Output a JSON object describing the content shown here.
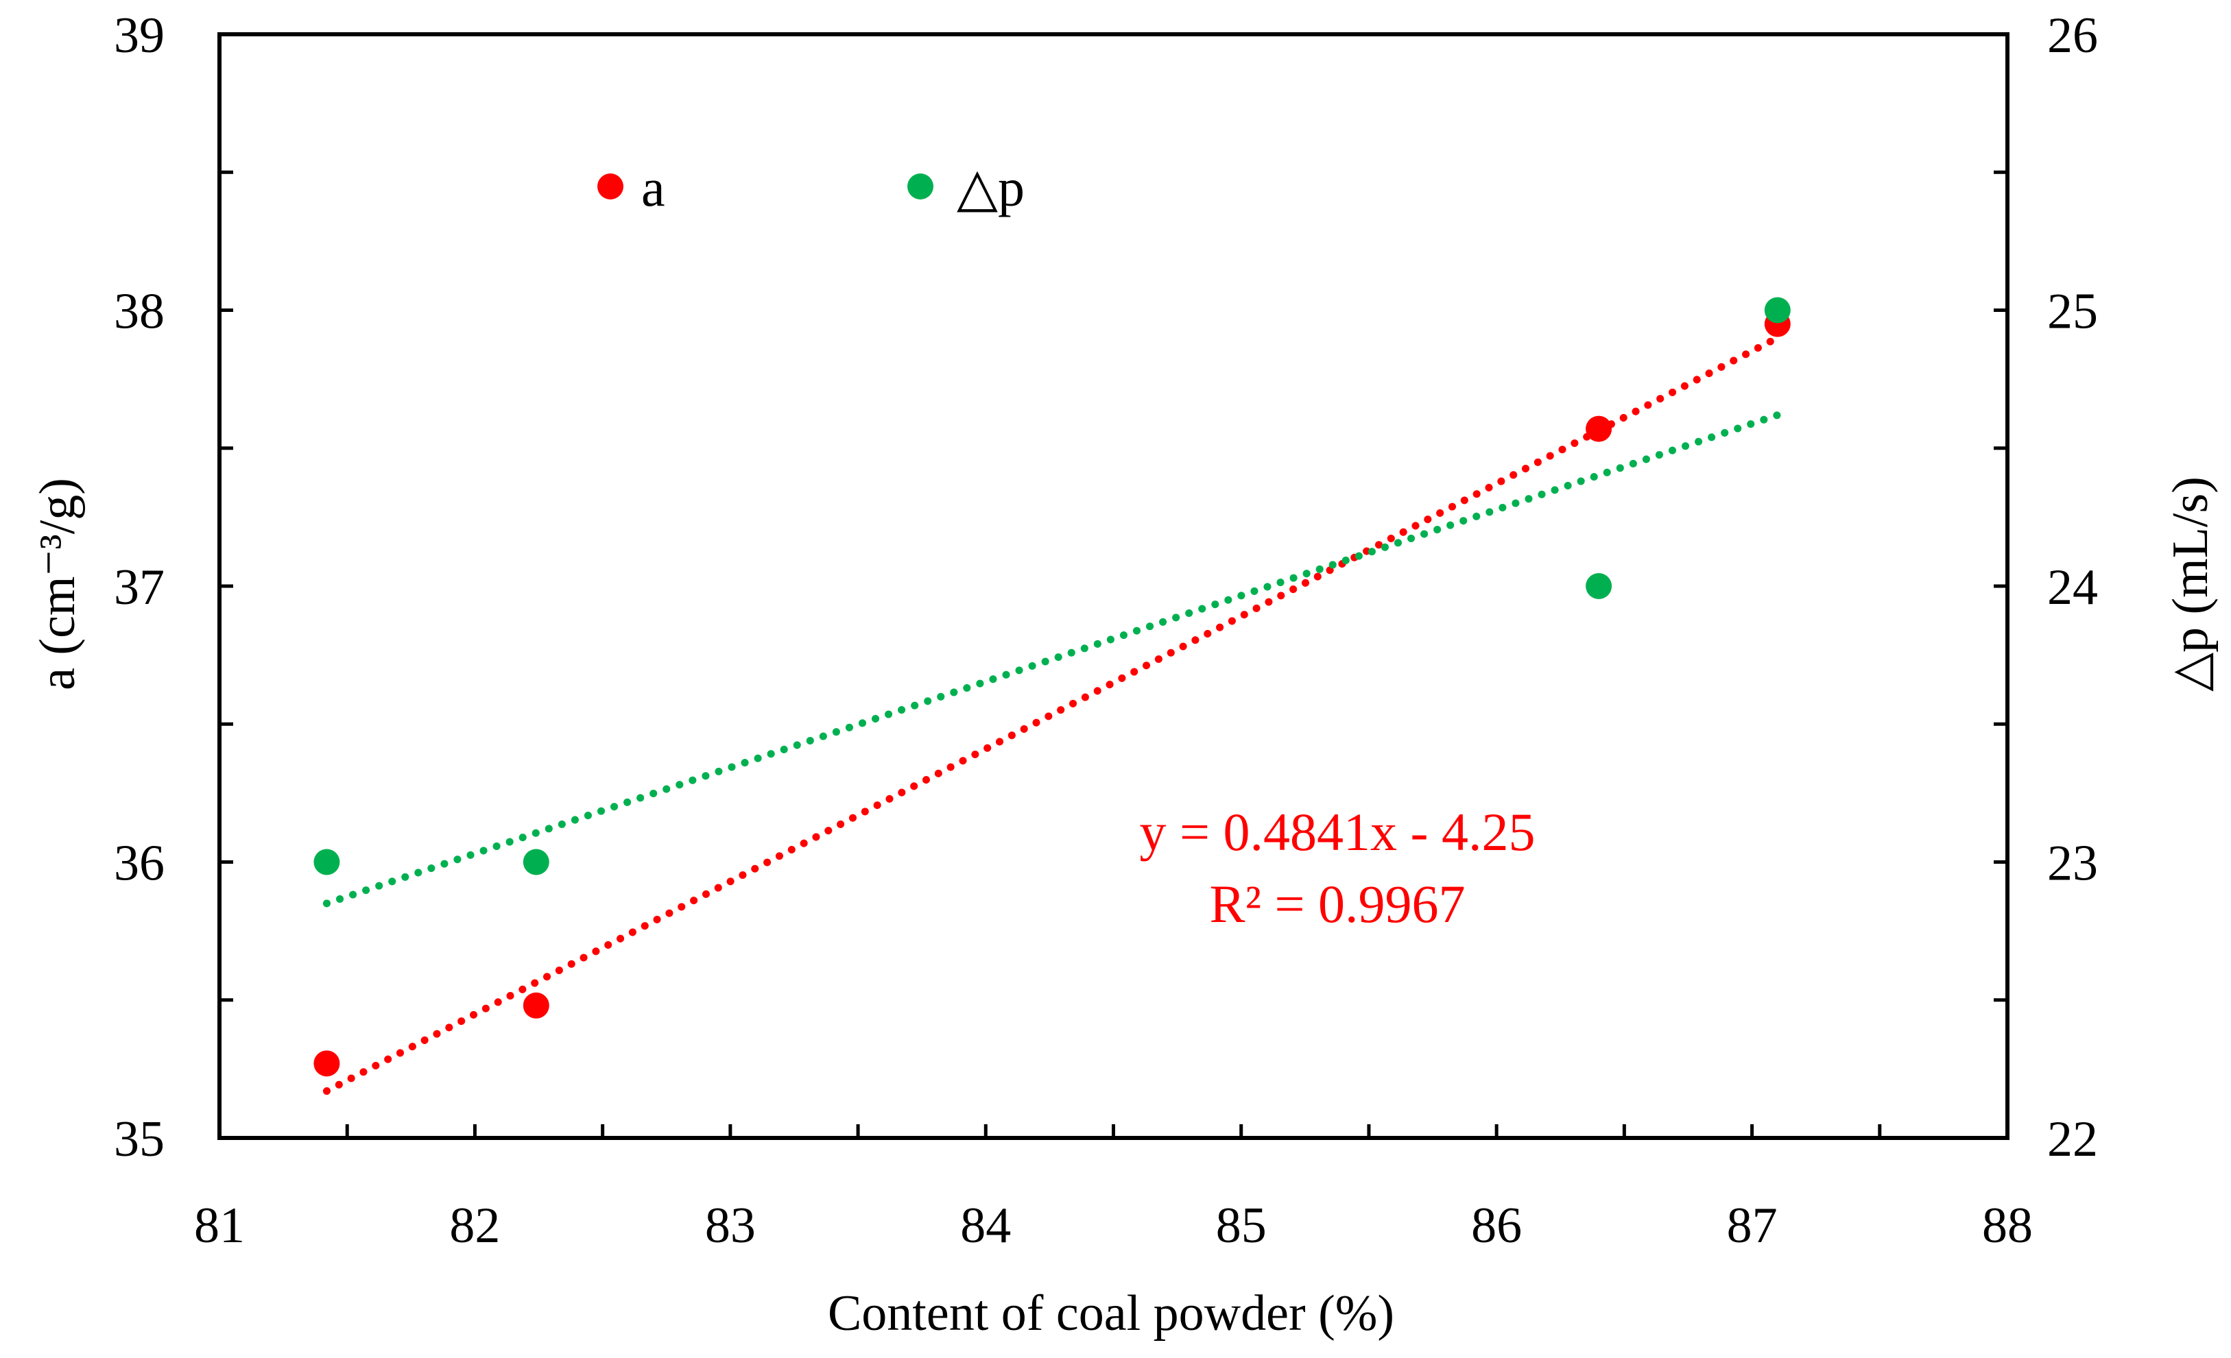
{
  "colors": {
    "series_a": "#ff0000",
    "series_dp": "#00b050",
    "axis": "#000000",
    "background": "#ffffff"
  },
  "chart_data": {
    "type": "scatter",
    "title": "",
    "xlabel": "Content  of coal powder (%)",
    "ylabel_left": "a  (cm⁻³/g)",
    "ylabel_right": "△p (mL/s)",
    "xlim": [
      81,
      88
    ],
    "ylim_left": [
      35,
      39
    ],
    "ylim_right": [
      22,
      26
    ],
    "x_ticks": [
      "81",
      "82",
      "83",
      "84",
      "85",
      "86",
      "87",
      "88"
    ],
    "y_left_ticks": [
      "35",
      "36",
      "37",
      "38",
      "39"
    ],
    "y_right_ticks": [
      "22",
      "23",
      "24",
      "25",
      "26"
    ],
    "grid": false,
    "legend_position": "top-left",
    "series": [
      {
        "name": "a",
        "axis": "left",
        "x": [
          81.42,
          82.24,
          86.4,
          87.1
        ],
        "y": [
          35.27,
          35.48,
          37.57,
          37.95
        ],
        "trendline": {
          "x": [
            81.42,
            87.1
          ],
          "y": [
            35.17,
            37.9
          ],
          "style": "dotted"
        }
      },
      {
        "name": "△p",
        "axis": "right",
        "x": [
          81.42,
          82.24,
          86.4,
          87.1
        ],
        "y": [
          23.0,
          23.0,
          24.0,
          25.0
        ],
        "trendline": {
          "x": [
            81.42,
            87.1
          ],
          "y": [
            22.85,
            24.62
          ],
          "style": "dotted"
        }
      }
    ],
    "annotations": [
      {
        "text": "y = 0.4841x - 4.25"
      },
      {
        "text": "R² = 0.9967"
      }
    ]
  }
}
